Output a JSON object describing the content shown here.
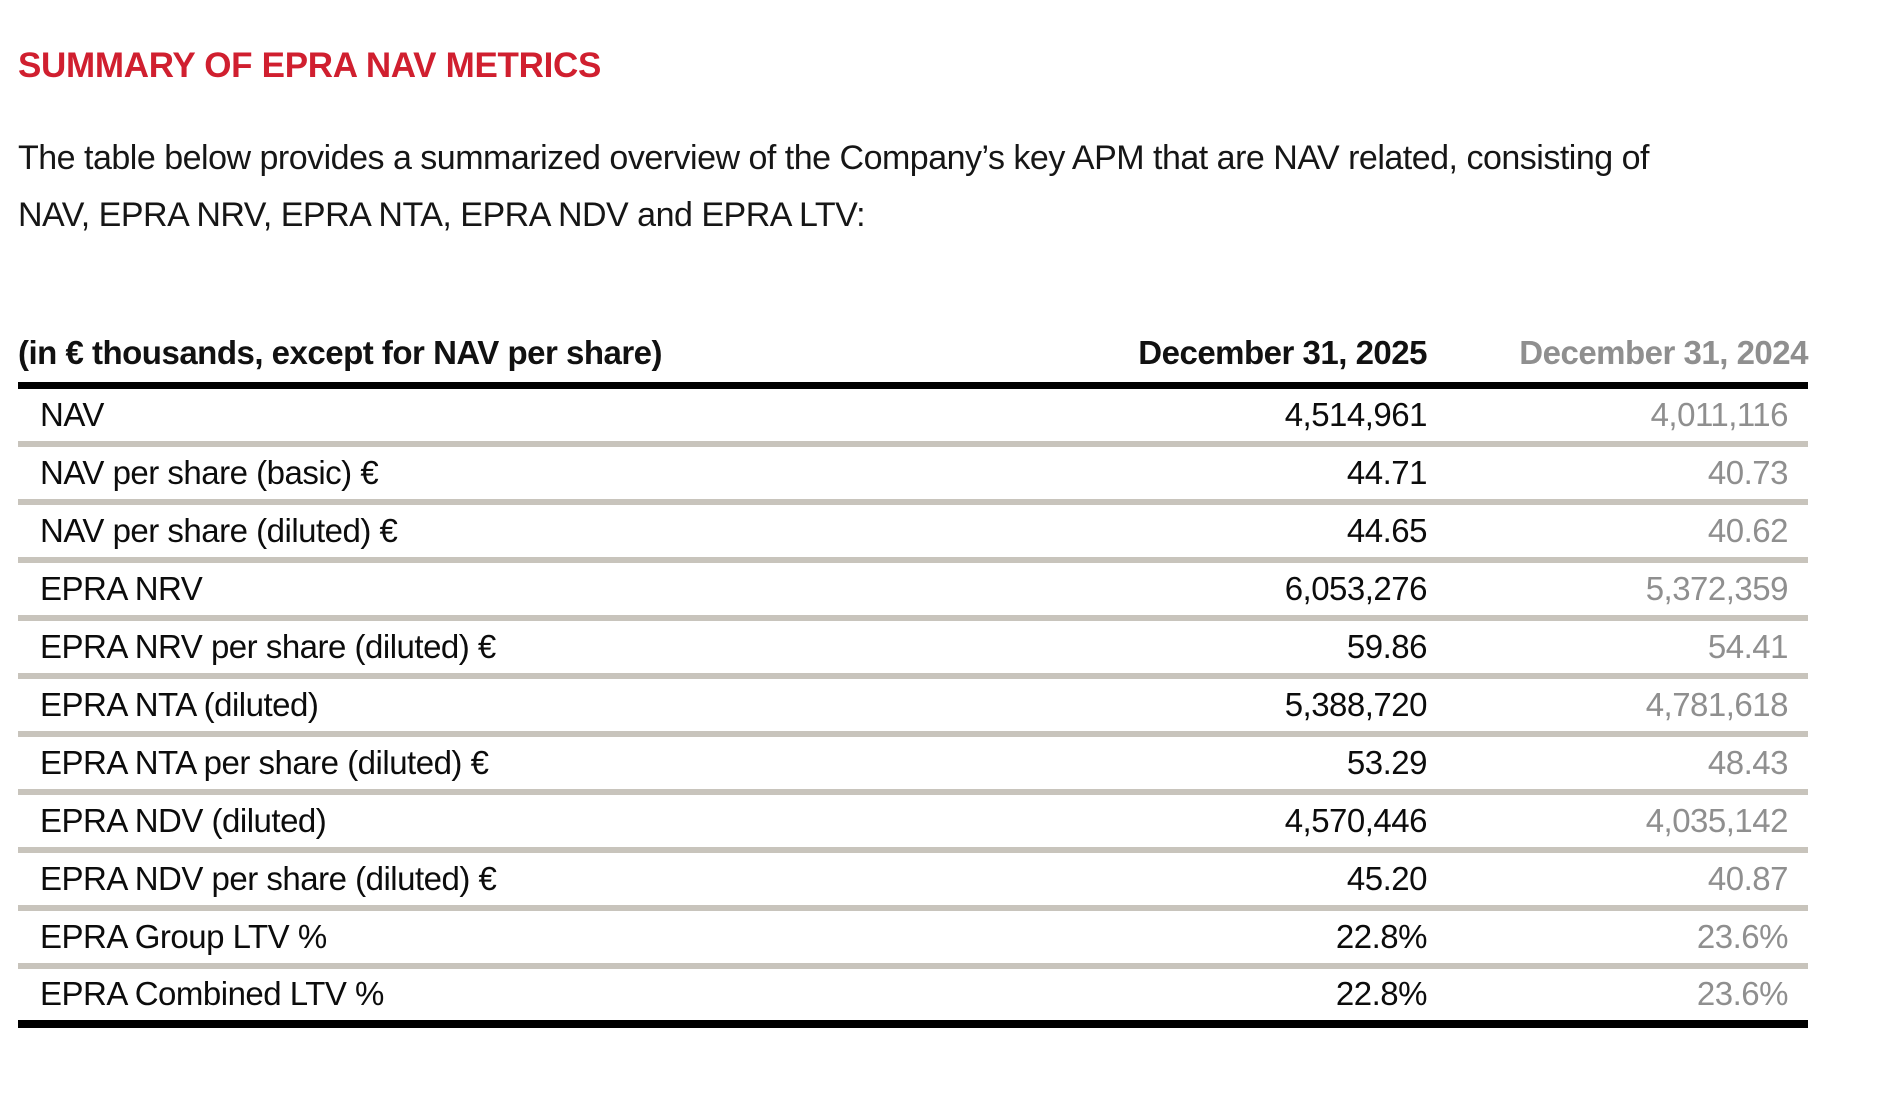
{
  "page": {
    "title": "SUMMARY OF EPRA NAV METRICS",
    "intro_line1": "The table below provides a summarized overview of the Company’s key APM that are NAV related, consisting of",
    "intro_line2": "NAV, EPRA NRV, EPRA NTA, EPRA NDV and EPRA LTV:"
  },
  "colors": {
    "heading_red": "#D01F2F",
    "prior_year_gray": "#8F8F8F",
    "row_separator": "#C8C4BC"
  },
  "table": {
    "header": {
      "label": "(in € thousands, except for NAV per share)",
      "col_2025": "December 31, 2025",
      "col_2024": "December 31, 2024"
    },
    "rows": [
      {
        "label": "NAV",
        "v2025": "4,514,961",
        "v2024": "4,011,116"
      },
      {
        "label": "NAV per share (basic) €",
        "v2025": "44.71",
        "v2024": "40.73"
      },
      {
        "label": "NAV per share (diluted) €",
        "v2025": "44.65",
        "v2024": "40.62"
      },
      {
        "label": "EPRA NRV",
        "v2025": "6,053,276",
        "v2024": "5,372,359"
      },
      {
        "label": "EPRA NRV per share (diluted) €",
        "v2025": "59.86",
        "v2024": "54.41"
      },
      {
        "label": "EPRA NTA (diluted)",
        "v2025": "5,388,720",
        "v2024": "4,781,618"
      },
      {
        "label": "EPRA NTA per share (diluted) €",
        "v2025": "53.29",
        "v2024": "48.43"
      },
      {
        "label": "EPRA NDV (diluted)",
        "v2025": "4,570,446",
        "v2024": "4,035,142"
      },
      {
        "label": "EPRA NDV per share (diluted) €",
        "v2025": "45.20",
        "v2024": "40.87"
      },
      {
        "label": "EPRA Group LTV %",
        "v2025": "22.8%",
        "v2024": "23.6%"
      },
      {
        "label": "EPRA Combined LTV %",
        "v2025": "22.8%",
        "v2024": "23.6%"
      }
    ]
  }
}
